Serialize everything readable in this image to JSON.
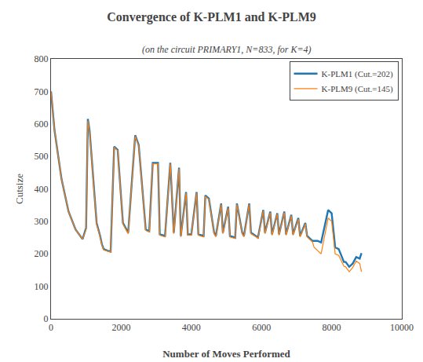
{
  "chart_data": {
    "type": "line",
    "title": "Convergence of K-PLM1 and K-PLM9",
    "subtitle": "(on the circuit PRIMARY1, N=833, for K=4)",
    "xlabel": "Number of Moves Performed",
    "ylabel": "Cutsize",
    "xlim": [
      0,
      10000
    ],
    "ylim": [
      0,
      800
    ],
    "xticks": [
      0,
      2000,
      4000,
      6000,
      8000,
      10000
    ],
    "yticks": [
      0,
      100,
      200,
      300,
      400,
      500,
      600,
      700,
      800
    ],
    "grid": false,
    "legend": "upper right",
    "x": [
      0,
      100,
      300,
      500,
      700,
      900,
      1000,
      1050,
      1100,
      1300,
      1400,
      1450,
      1500,
      1600,
      1700,
      1800,
      1900,
      2050,
      2200,
      2400,
      2500,
      2700,
      2800,
      2900,
      3050,
      3100,
      3250,
      3400,
      3500,
      3650,
      3700,
      3850,
      3900,
      4000,
      4150,
      4200,
      4350,
      4400,
      4500,
      4650,
      4700,
      4850,
      4900,
      5050,
      5100,
      5250,
      5300,
      5450,
      5500,
      5650,
      5700,
      5850,
      5900,
      6050,
      6100,
      6250,
      6300,
      6450,
      6500,
      6650,
      6700,
      6850,
      6900,
      7050,
      7100,
      7250,
      7300,
      7450,
      7500,
      7600,
      7700,
      7900,
      8000,
      8100,
      8200,
      8350,
      8400,
      8500,
      8600,
      8700,
      8800,
      8850
    ],
    "series": [
      {
        "name": "K-PLM1 (Cut.=202)",
        "values": [
          700,
          580,
          430,
          330,
          275,
          245,
          280,
          615,
          580,
          295,
          255,
          230,
          215,
          210,
          207,
          530,
          520,
          295,
          265,
          565,
          535,
          275,
          270,
          480,
          480,
          260,
          255,
          480,
          265,
          465,
          255,
          390,
          260,
          260,
          390,
          260,
          255,
          380,
          370,
          265,
          255,
          355,
          265,
          345,
          255,
          250,
          355,
          265,
          255,
          355,
          265,
          255,
          250,
          335,
          265,
          330,
          260,
          325,
          260,
          330,
          260,
          320,
          260,
          310,
          255,
          295,
          255,
          240,
          240,
          240,
          235,
          335,
          325,
          220,
          215,
          175,
          175,
          160,
          170,
          190,
          185,
          202
        ]
      },
      {
        "name": "K-PLM9 (Cut.=145)",
        "values": [
          700,
          580,
          430,
          330,
          275,
          245,
          275,
          610,
          575,
          290,
          252,
          227,
          212,
          208,
          205,
          528,
          518,
          292,
          262,
          562,
          532,
          272,
          267,
          477,
          477,
          257,
          252,
          477,
          262,
          462,
          252,
          387,
          257,
          257,
          387,
          257,
          252,
          377,
          367,
          262,
          252,
          352,
          262,
          342,
          252,
          247,
          352,
          262,
          252,
          352,
          262,
          252,
          247,
          332,
          262,
          327,
          257,
          322,
          257,
          327,
          257,
          317,
          257,
          307,
          252,
          292,
          252,
          237,
          220,
          210,
          200,
          310,
          300,
          200,
          195,
          162,
          160,
          145,
          158,
          178,
          170,
          145
        ]
      }
    ]
  }
}
